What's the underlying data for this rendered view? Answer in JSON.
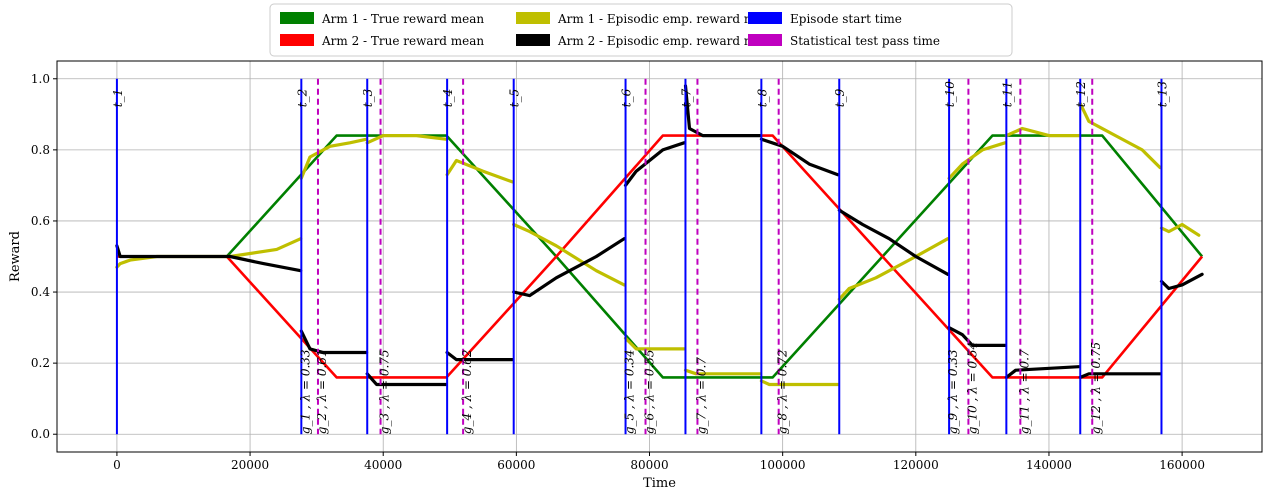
{
  "chart_data": {
    "type": "line",
    "xlabel": "Time",
    "ylabel": "Reward",
    "xlim": [
      -9000,
      172000
    ],
    "ylim": [
      -0.05,
      1.05
    ],
    "x_ticks": [
      0,
      20000,
      40000,
      60000,
      80000,
      100000,
      120000,
      140000,
      160000
    ],
    "x_tick_labels": [
      "0",
      "20000",
      "40000",
      "60000",
      "80000",
      "100000",
      "120000",
      "140000",
      "160000"
    ],
    "y_ticks": [
      0.0,
      0.2,
      0.4,
      0.6,
      0.8,
      1.0
    ],
    "y_tick_labels": [
      "0.0",
      "0.2",
      "0.4",
      "0.6",
      "0.8",
      "1.0"
    ],
    "grid": true,
    "legend_position": "top-center",
    "legend": [
      {
        "label": "Arm 1 - True reward mean",
        "color": "#008000"
      },
      {
        "label": "Arm 2 - True reward mean",
        "color": "#ff0000"
      },
      {
        "label": "Arm 1 - Episodic emp. reward mean",
        "color": "#bfbf00"
      },
      {
        "label": "Arm 2 - Episodic emp. reward mean",
        "color": "#000000"
      },
      {
        "label": "Episode start time",
        "color": "#0000ff"
      },
      {
        "label": "Statistical test pass time",
        "color": "#bf00bf"
      }
    ],
    "series": [
      {
        "name": "Arm 1 - True reward mean",
        "color": "#008000",
        "points": [
          [
            0,
            0.5
          ],
          [
            16500,
            0.5
          ],
          [
            33000,
            0.84
          ],
          [
            49500,
            0.84
          ],
          [
            66000,
            0.5
          ],
          [
            82000,
            0.16
          ],
          [
            98500,
            0.16
          ],
          [
            115000,
            0.5
          ],
          [
            131500,
            0.84
          ],
          [
            148000,
            0.84
          ],
          [
            163000,
            0.5
          ]
        ]
      },
      {
        "name": "Arm 2 - True reward mean",
        "color": "#ff0000",
        "points": [
          [
            0,
            0.5
          ],
          [
            16500,
            0.5
          ],
          [
            33000,
            0.16
          ],
          [
            49500,
            0.16
          ],
          [
            66000,
            0.5
          ],
          [
            82000,
            0.84
          ],
          [
            98500,
            0.84
          ],
          [
            115000,
            0.5
          ],
          [
            131500,
            0.16
          ],
          [
            148000,
            0.16
          ],
          [
            163000,
            0.5
          ]
        ]
      },
      {
        "name": "Arm 1 - Episodic emp. reward mean",
        "color": "#bfbf00",
        "segments": [
          [
            [
              0,
              0.47
            ],
            [
              500,
              0.48
            ],
            [
              2000,
              0.49
            ],
            [
              6000,
              0.5
            ],
            [
              17000,
              0.5
            ],
            [
              24000,
              0.52
            ],
            [
              27600,
              0.55
            ]
          ],
          [
            [
              27700,
              0.72
            ],
            [
              29000,
              0.78
            ],
            [
              32000,
              0.81
            ],
            [
              35000,
              0.82
            ],
            [
              37500,
              0.83
            ]
          ],
          [
            [
              37600,
              0.82
            ],
            [
              40000,
              0.84
            ],
            [
              45000,
              0.84
            ],
            [
              49400,
              0.83
            ]
          ],
          [
            [
              49600,
              0.73
            ],
            [
              51000,
              0.77
            ],
            [
              55000,
              0.74
            ],
            [
              59400,
              0.71
            ]
          ],
          [
            [
              59600,
              0.59
            ],
            [
              62000,
              0.57
            ],
            [
              66000,
              0.53
            ],
            [
              72000,
              0.46
            ],
            [
              76200,
              0.42
            ]
          ],
          [
            [
              76400,
              0.27
            ],
            [
              78000,
              0.24
            ],
            [
              85200,
              0.24
            ]
          ],
          [
            [
              85400,
              0.18
            ],
            [
              87000,
              0.17
            ],
            [
              96600,
              0.17
            ]
          ],
          [
            [
              96800,
              0.15
            ],
            [
              98000,
              0.14
            ],
            [
              108300,
              0.14
            ]
          ],
          [
            [
              108500,
              0.38
            ],
            [
              110000,
              0.41
            ],
            [
              114000,
              0.44
            ],
            [
              120000,
              0.5
            ],
            [
              124800,
              0.55
            ]
          ],
          [
            [
              125000,
              0.72
            ],
            [
              127000,
              0.76
            ],
            [
              130000,
              0.8
            ],
            [
              133400,
              0.82
            ]
          ],
          [
            [
              133600,
              0.84
            ],
            [
              136000,
              0.86
            ],
            [
              140000,
              0.84
            ],
            [
              144500,
              0.84
            ]
          ],
          [
            [
              144700,
              0.93
            ],
            [
              146000,
              0.88
            ],
            [
              150000,
              0.84
            ],
            [
              154000,
              0.8
            ],
            [
              156700,
              0.75
            ]
          ],
          [
            [
              156900,
              0.58
            ],
            [
              158000,
              0.57
            ],
            [
              160000,
              0.59
            ],
            [
              162500,
              0.56
            ]
          ]
        ]
      },
      {
        "name": "Arm 2 - Episodic emp. reward mean",
        "color": "#000000",
        "segments": [
          [
            [
              0,
              0.53
            ],
            [
              500,
              0.5
            ],
            [
              2000,
              0.5
            ],
            [
              6000,
              0.5
            ],
            [
              10000,
              0.5
            ],
            [
              17000,
              0.5
            ],
            [
              22000,
              0.48
            ],
            [
              27600,
              0.46
            ]
          ],
          [
            [
              27700,
              0.29
            ],
            [
              29000,
              0.24
            ],
            [
              31000,
              0.23
            ],
            [
              37500,
              0.23
            ]
          ],
          [
            [
              37600,
              0.17
            ],
            [
              39000,
              0.14
            ],
            [
              49400,
              0.14
            ]
          ],
          [
            [
              49600,
              0.23
            ],
            [
              51000,
              0.21
            ],
            [
              59400,
              0.21
            ]
          ],
          [
            [
              59600,
              0.4
            ],
            [
              62000,
              0.39
            ],
            [
              66000,
              0.44
            ],
            [
              72000,
              0.5
            ],
            [
              76200,
              0.55
            ]
          ],
          [
            [
              76400,
              0.7
            ],
            [
              78000,
              0.74
            ],
            [
              82000,
              0.8
            ],
            [
              85200,
              0.82
            ]
          ],
          [
            [
              85400,
              0.98
            ],
            [
              86000,
              0.86
            ],
            [
              88000,
              0.84
            ],
            [
              92000,
              0.84
            ],
            [
              96600,
              0.84
            ]
          ],
          [
            [
              96800,
              0.83
            ],
            [
              100000,
              0.81
            ],
            [
              104000,
              0.76
            ],
            [
              108300,
              0.73
            ]
          ],
          [
            [
              108500,
              0.63
            ],
            [
              112000,
              0.59
            ],
            [
              116000,
              0.55
            ],
            [
              120000,
              0.5
            ],
            [
              124800,
              0.45
            ]
          ],
          [
            [
              125000,
              0.3
            ],
            [
              127000,
              0.28
            ],
            [
              128500,
              0.25
            ],
            [
              133400,
              0.25
            ]
          ],
          [
            [
              133600,
              0.16
            ],
            [
              135000,
              0.18
            ],
            [
              144500,
              0.19
            ]
          ],
          [
            [
              144700,
              0.16
            ],
            [
              146000,
              0.17
            ],
            [
              150000,
              0.17
            ],
            [
              156700,
              0.17
            ]
          ],
          [
            [
              156900,
              0.43
            ],
            [
              158000,
              0.41
            ],
            [
              160000,
              0.42
            ],
            [
              163000,
              0.45
            ]
          ]
        ]
      }
    ],
    "episode_starts": [
      {
        "x": 0,
        "label": "t_1"
      },
      {
        "x": 27700,
        "label": "t_2"
      },
      {
        "x": 37600,
        "label": "t_3"
      },
      {
        "x": 49600,
        "label": "t_4"
      },
      {
        "x": 59600,
        "label": "t_5"
      },
      {
        "x": 76400,
        "label": "t_6"
      },
      {
        "x": 85400,
        "label": "t_7"
      },
      {
        "x": 96800,
        "label": "t_8"
      },
      {
        "x": 108500,
        "label": "t_9"
      },
      {
        "x": 125000,
        "label": "t_10"
      },
      {
        "x": 133600,
        "label": "t_11"
      },
      {
        "x": 144700,
        "label": "t_12"
      },
      {
        "x": 156900,
        "label": "t_13"
      }
    ],
    "test_pass_times": [
      {
        "x": 30200,
        "label": "g_2 , λ = 0.61"
      },
      {
        "x": 39600,
        "label": "g_3 , λ = 0.75"
      },
      {
        "x": 52000,
        "label": "g_4 , λ = 0.62"
      },
      {
        "x": 79400,
        "label": "g_6 , λ = 0.55"
      },
      {
        "x": 87200,
        "label": "g_7 , λ = 0.7"
      },
      {
        "x": 99400,
        "label": "g_8 , λ = 0.72"
      },
      {
        "x": 127900,
        "label": "g_10 , λ = 0.54"
      },
      {
        "x": 135700,
        "label": "g_11 , λ = 0.7"
      },
      {
        "x": 146500,
        "label": "g_12 , λ = 0.75"
      }
    ],
    "start_labels": [
      {
        "x": 27700,
        "label": "g_1 , λ = 0.33"
      },
      {
        "x": 76400,
        "label": "g_5 , λ = 0.34"
      },
      {
        "x": 125000,
        "label": "g_9 , λ = 0.33"
      }
    ]
  }
}
